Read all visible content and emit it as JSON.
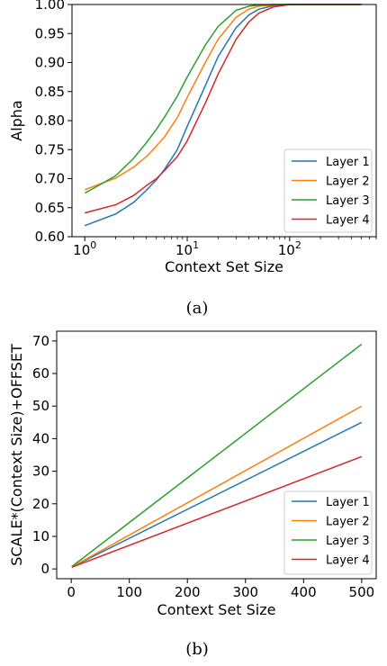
{
  "chart_data": [
    {
      "type": "line",
      "caption": "(a)",
      "xlabel": "Context Set Size",
      "ylabel": "Alpha",
      "xscale": "log",
      "xlim": [
        0.75,
        700
      ],
      "ylim": [
        0.6,
        1.0
      ],
      "yticks": [
        "0.60",
        "0.65",
        "0.70",
        "0.75",
        "0.80",
        "0.85",
        "0.90",
        "0.95",
        "1.00"
      ],
      "xticks": [
        {
          "base": "10",
          "exp": "0",
          "value": 1
        },
        {
          "base": "10",
          "exp": "1",
          "value": 10
        },
        {
          "base": "10",
          "exp": "2",
          "value": 100
        }
      ],
      "legend": "lower right",
      "x": [
        1,
        2,
        3,
        4,
        5,
        6,
        8,
        10,
        15,
        20,
        30,
        40,
        50,
        70,
        100,
        150,
        200,
        300,
        500
      ],
      "series": [
        {
          "name": "Layer 1",
          "color": "#1f77b4",
          "values": [
            0.619,
            0.639,
            0.659,
            0.68,
            0.698,
            0.716,
            0.75,
            0.79,
            0.86,
            0.91,
            0.96,
            0.982,
            0.992,
            0.998,
            1.0,
            1.0,
            1.0,
            1.0,
            1.0
          ]
        },
        {
          "name": "Layer 2",
          "color": "#ff7f0e",
          "values": [
            0.681,
            0.701,
            0.72,
            0.738,
            0.756,
            0.772,
            0.805,
            0.84,
            0.9,
            0.94,
            0.978,
            0.992,
            0.997,
            0.999,
            1.0,
            1.0,
            1.0,
            1.0,
            1.0
          ]
        },
        {
          "name": "Layer 3",
          "color": "#2ca02c",
          "values": [
            0.675,
            0.705,
            0.735,
            0.762,
            0.785,
            0.806,
            0.842,
            0.875,
            0.93,
            0.962,
            0.99,
            0.997,
            0.999,
            1.0,
            1.0,
            1.0,
            1.0,
            1.0,
            1.0
          ]
        },
        {
          "name": "Layer 4",
          "color": "#d62728",
          "values": [
            0.641,
            0.655,
            0.671,
            0.688,
            0.7,
            0.714,
            0.738,
            0.765,
            0.83,
            0.88,
            0.94,
            0.97,
            0.985,
            0.996,
            1.0,
            1.0,
            1.0,
            1.0,
            1.0
          ]
        }
      ]
    },
    {
      "type": "line",
      "caption": "(b)",
      "xlabel": "Context Set Size",
      "ylabel": "SCALE*(Context Size)+OFFSET",
      "xlim": [
        -25,
        525
      ],
      "ylim": [
        -3,
        73
      ],
      "xticks": [
        "0",
        "100",
        "200",
        "300",
        "400",
        "500"
      ],
      "yticks": [
        "0",
        "10",
        "20",
        "30",
        "40",
        "50",
        "60",
        "70"
      ],
      "legend": "lower right",
      "x": [
        1,
        500
      ],
      "series": [
        {
          "name": "Layer 1",
          "color": "#1f77b4",
          "values": [
            0.6,
            45
          ]
        },
        {
          "name": "Layer 2",
          "color": "#ff7f0e",
          "values": [
            0.6,
            50
          ]
        },
        {
          "name": "Layer 3",
          "color": "#2ca02c",
          "values": [
            0.7,
            69
          ]
        },
        {
          "name": "Layer 4",
          "color": "#d62728",
          "values": [
            0.5,
            34.5
          ]
        }
      ]
    }
  ]
}
